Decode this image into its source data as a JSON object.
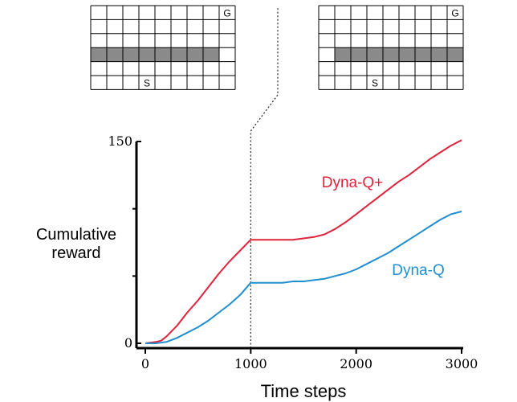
{
  "chart_data": {
    "type": "line",
    "title": "",
    "xlabel": "Time steps",
    "ylabel_lines": [
      "Cumulative",
      "reward"
    ],
    "xlim": [
      0,
      3000
    ],
    "ylim": [
      0,
      150
    ],
    "x_ticks": [
      0,
      1000,
      2000,
      3000
    ],
    "y_tick_labels": [
      {
        "value": 0,
        "label": "0"
      },
      {
        "value": 150,
        "label": "150"
      }
    ],
    "y_minor_ticks": [
      50,
      100
    ],
    "grid": false,
    "event_x": 1000,
    "series": [
      {
        "name": "Dyna-Q+",
        "color": "#e0233c",
        "points": [
          [
            0,
            0
          ],
          [
            100,
            1
          ],
          [
            150,
            2
          ],
          [
            200,
            5
          ],
          [
            300,
            13
          ],
          [
            400,
            23
          ],
          [
            500,
            32
          ],
          [
            600,
            42
          ],
          [
            700,
            52
          ],
          [
            800,
            61
          ],
          [
            900,
            69
          ],
          [
            1000,
            77
          ],
          [
            1100,
            77
          ],
          [
            1200,
            77
          ],
          [
            1300,
            77
          ],
          [
            1400,
            77
          ],
          [
            1500,
            78
          ],
          [
            1600,
            79
          ],
          [
            1700,
            81
          ],
          [
            1800,
            85
          ],
          [
            1900,
            90
          ],
          [
            2000,
            96
          ],
          [
            2100,
            102
          ],
          [
            2200,
            108
          ],
          [
            2300,
            114
          ],
          [
            2400,
            120
          ],
          [
            2500,
            125
          ],
          [
            2600,
            131
          ],
          [
            2700,
            137
          ],
          [
            2800,
            142
          ],
          [
            2900,
            147
          ],
          [
            3000,
            151
          ]
        ]
      },
      {
        "name": "Dyna-Q",
        "color": "#1f8fd0",
        "points": [
          [
            0,
            0
          ],
          [
            100,
            0
          ],
          [
            200,
            1
          ],
          [
            300,
            4
          ],
          [
            400,
            8
          ],
          [
            500,
            12
          ],
          [
            600,
            17
          ],
          [
            700,
            23
          ],
          [
            800,
            29
          ],
          [
            900,
            36
          ],
          [
            1000,
            45
          ],
          [
            1100,
            45
          ],
          [
            1200,
            45
          ],
          [
            1300,
            45
          ],
          [
            1400,
            46
          ],
          [
            1500,
            46
          ],
          [
            1600,
            47
          ],
          [
            1700,
            48
          ],
          [
            1800,
            50
          ],
          [
            1900,
            52
          ],
          [
            2000,
            55
          ],
          [
            2100,
            59
          ],
          [
            2200,
            63
          ],
          [
            2300,
            67
          ],
          [
            2400,
            72
          ],
          [
            2500,
            77
          ],
          [
            2600,
            82
          ],
          [
            2700,
            87
          ],
          [
            2800,
            92
          ],
          [
            2900,
            96
          ],
          [
            3000,
            98
          ]
        ]
      }
    ]
  },
  "mazes": {
    "before": {
      "start_label": "S",
      "goal_label": "G",
      "cols": 9,
      "rows": 6,
      "goal": [
        0,
        8
      ],
      "start": [
        5,
        3
      ],
      "wall_row": 3,
      "wall_cols": [
        0,
        7
      ]
    },
    "after": {
      "start_label": "S",
      "goal_label": "G",
      "cols": 9,
      "rows": 6,
      "goal": [
        0,
        8
      ],
      "start": [
        5,
        3
      ],
      "wall_row": 3,
      "wall_cols": [
        1,
        8
      ]
    }
  }
}
